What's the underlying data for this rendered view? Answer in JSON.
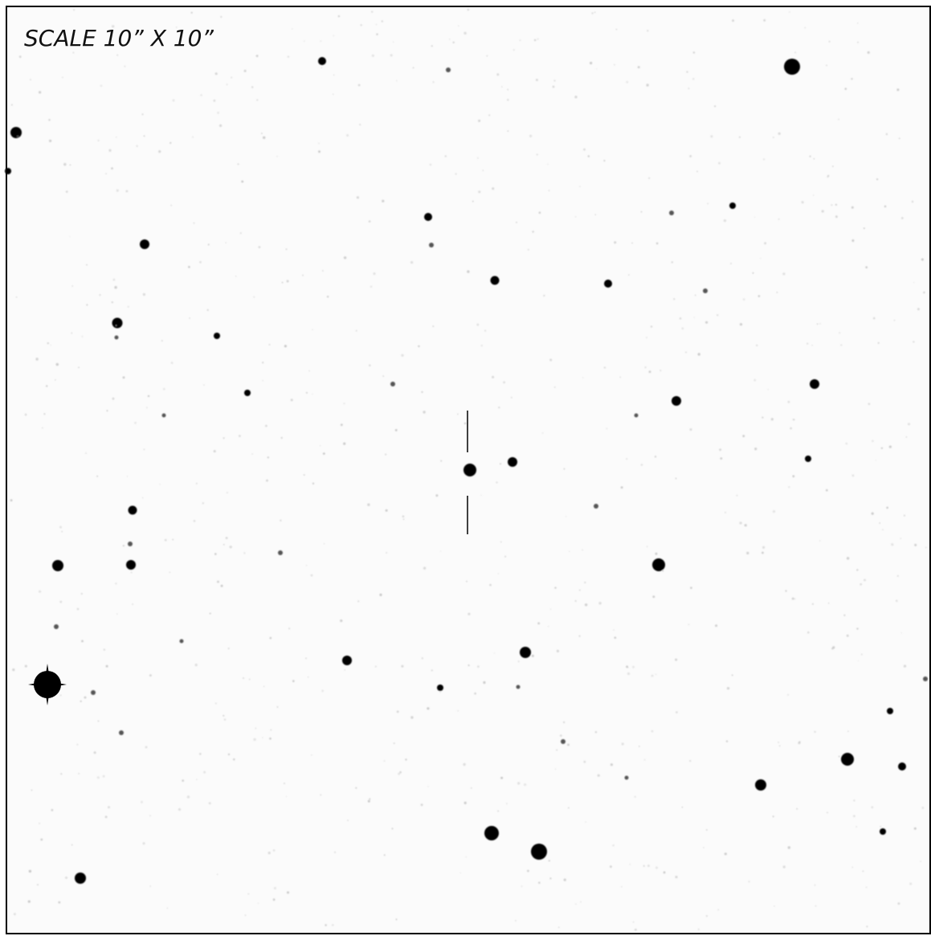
{
  "scale_label": "SCALE 10” X 10”"
}
